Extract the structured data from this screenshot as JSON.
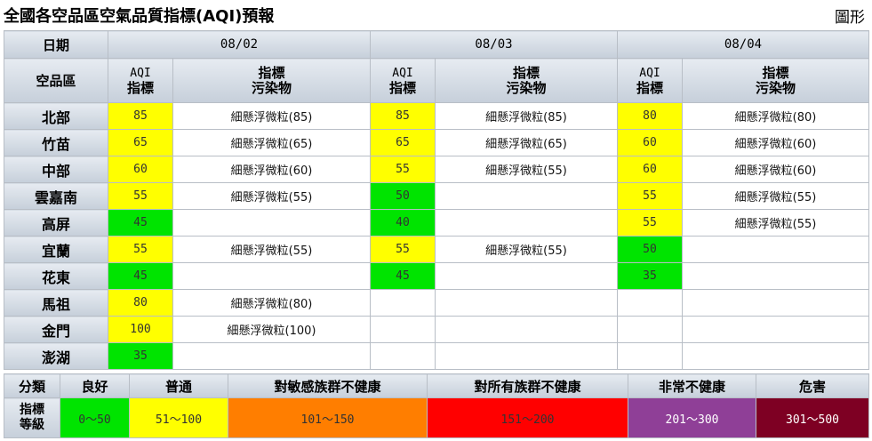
{
  "page": {
    "title": "全國各空品區空氣品質指標(AQI)預報",
    "graph_link": "圖形"
  },
  "table": {
    "date_header": "日期",
    "region_header": "空品區",
    "aqi_header": [
      "AQI",
      "指標"
    ],
    "pollutant_header": [
      "指標",
      "污染物"
    ],
    "dates": [
      "08/02",
      "08/03",
      "08/04"
    ],
    "pollutant_name": "細懸浮微粒",
    "regions": [
      {
        "name": "北部",
        "days": [
          {
            "aqi": "85",
            "pollutant": "細懸浮微粒(85)"
          },
          {
            "aqi": "85",
            "pollutant": "細懸浮微粒(85)"
          },
          {
            "aqi": "80",
            "pollutant": "細懸浮微粒(80)"
          }
        ]
      },
      {
        "name": "竹苗",
        "days": [
          {
            "aqi": "65",
            "pollutant": "細懸浮微粒(65)"
          },
          {
            "aqi": "65",
            "pollutant": "細懸浮微粒(65)"
          },
          {
            "aqi": "60",
            "pollutant": "細懸浮微粒(60)"
          }
        ]
      },
      {
        "name": "中部",
        "days": [
          {
            "aqi": "60",
            "pollutant": "細懸浮微粒(60)"
          },
          {
            "aqi": "55",
            "pollutant": "細懸浮微粒(55)"
          },
          {
            "aqi": "60",
            "pollutant": "細懸浮微粒(60)"
          }
        ]
      },
      {
        "name": "雲嘉南",
        "days": [
          {
            "aqi": "55",
            "pollutant": "細懸浮微粒(55)"
          },
          {
            "aqi": "50",
            "pollutant": ""
          },
          {
            "aqi": "55",
            "pollutant": "細懸浮微粒(55)"
          }
        ]
      },
      {
        "name": "高屏",
        "days": [
          {
            "aqi": "45",
            "pollutant": ""
          },
          {
            "aqi": "40",
            "pollutant": ""
          },
          {
            "aqi": "55",
            "pollutant": "細懸浮微粒(55)"
          }
        ]
      },
      {
        "name": "宜蘭",
        "days": [
          {
            "aqi": "55",
            "pollutant": "細懸浮微粒(55)"
          },
          {
            "aqi": "55",
            "pollutant": "細懸浮微粒(55)"
          },
          {
            "aqi": "50",
            "pollutant": ""
          }
        ]
      },
      {
        "name": "花東",
        "days": [
          {
            "aqi": "45",
            "pollutant": ""
          },
          {
            "aqi": "45",
            "pollutant": ""
          },
          {
            "aqi": "35",
            "pollutant": ""
          }
        ]
      },
      {
        "name": "馬祖",
        "days": [
          {
            "aqi": "80",
            "pollutant": "細懸浮微粒(80)"
          },
          null,
          null
        ]
      },
      {
        "name": "金門",
        "days": [
          {
            "aqi": "100",
            "pollutant": "細懸浮微粒(100)"
          },
          null,
          null
        ]
      },
      {
        "name": "澎湖",
        "days": [
          {
            "aqi": "35",
            "pollutant": ""
          },
          null,
          null
        ]
      }
    ]
  },
  "legend": {
    "category_header": "分類",
    "level_header": [
      "指標",
      "等級"
    ],
    "levels": [
      {
        "name": "良好",
        "range": "0～50",
        "color": "#00e400",
        "text_color": "#333333"
      },
      {
        "name": "普通",
        "range": "51～100",
        "color": "#ffff00",
        "text_color": "#333333"
      },
      {
        "name": "對敏感族群不健康",
        "range": "101～150",
        "color": "#ff7e00",
        "text_color": "#333333"
      },
      {
        "name": "對所有族群不健康",
        "range": "151～200",
        "color": "#ff0000",
        "text_color": "#333333"
      },
      {
        "name": "非常不健康",
        "range": "201～300",
        "color": "#8f3f97",
        "text_color": "#ffffff"
      },
      {
        "name": "危害",
        "range": "301～500",
        "color": "#7e0023",
        "text_color": "#ffffff"
      }
    ]
  }
}
